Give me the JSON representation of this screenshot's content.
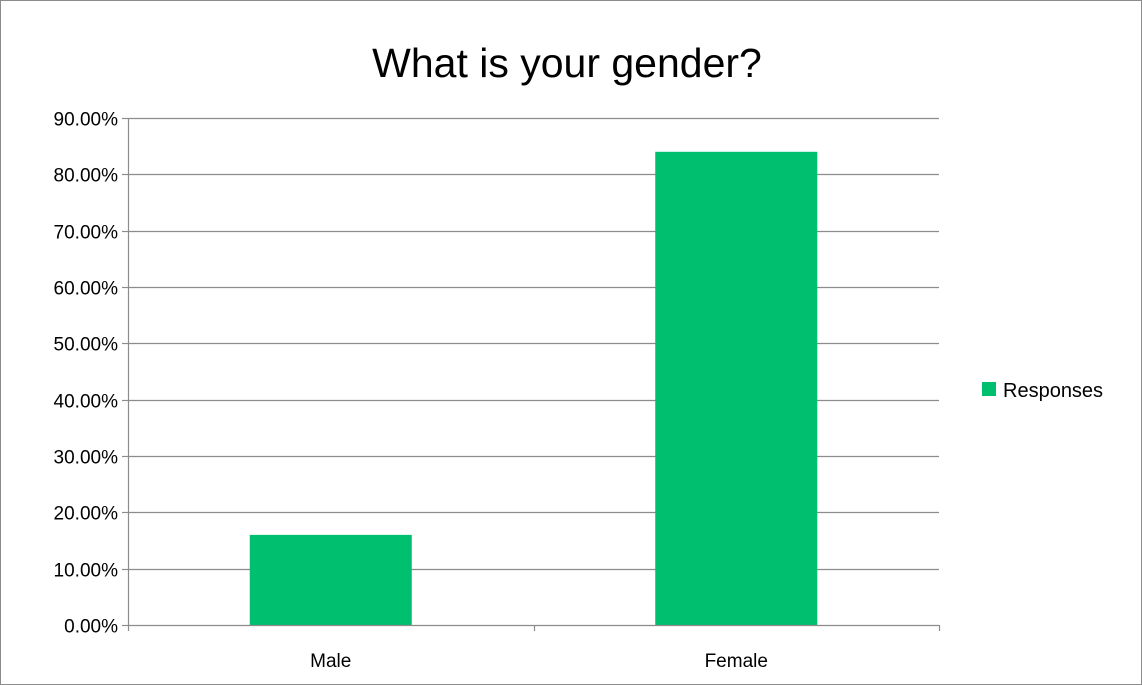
{
  "chart_data": {
    "type": "bar",
    "title": "What is your gender?",
    "xlabel": "",
    "ylabel": "",
    "categories": [
      "Male",
      "Female"
    ],
    "series": [
      {
        "name": "Responses",
        "values": [
          0.16,
          0.84
        ],
        "color": "#00bf6f"
      }
    ],
    "ylim": [
      0,
      0.9
    ],
    "yticks": [
      {
        "value": 0.0,
        "label": "0.00%"
      },
      {
        "value": 0.1,
        "label": "10.00%"
      },
      {
        "value": 0.2,
        "label": "20.00%"
      },
      {
        "value": 0.3,
        "label": "30.00%"
      },
      {
        "value": 0.4,
        "label": "40.00%"
      },
      {
        "value": 0.5,
        "label": "50.00%"
      },
      {
        "value": 0.6,
        "label": "60.00%"
      },
      {
        "value": 0.7,
        "label": "70.00%"
      },
      {
        "value": 0.8,
        "label": "80.00%"
      },
      {
        "value": 0.9,
        "label": "90.00%"
      }
    ],
    "grid": true,
    "legend_position": "right",
    "colors": {
      "gridline": "#8c8c8c",
      "axis": "#8c8c8c",
      "border": "#8c8c8c"
    }
  }
}
